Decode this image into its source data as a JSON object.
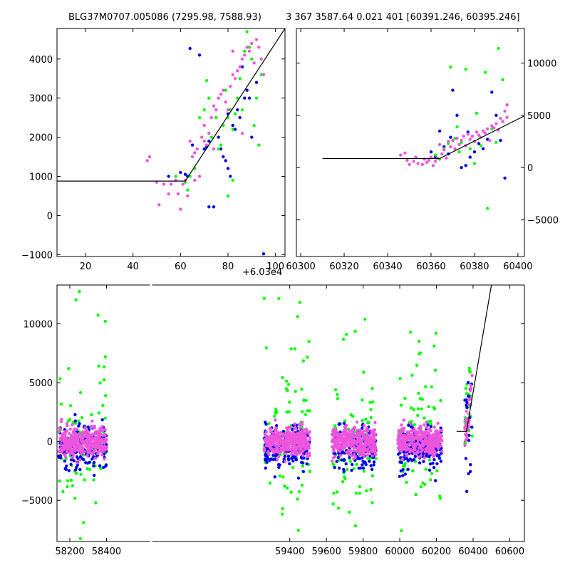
{
  "chart_data": [
    {
      "type": "scatter",
      "panel": "top-left",
      "title": "BLG37M0707.005086 (7295.98, 7588.93)",
      "x_offset_label": "+6.03e4",
      "xlim": [
        8,
        104
      ],
      "ylim": [
        -1050,
        4780
      ],
      "xticks": [
        20,
        40,
        60,
        80,
        100
      ],
      "yticks": [
        -1000,
        0,
        1000,
        2000,
        3000,
        4000
      ],
      "ytick_side": "left",
      "model_line": [
        [
          8,
          880
        ],
        [
          62,
          880
        ],
        [
          104,
          4780
        ]
      ],
      "series": [
        {
          "color": "#0000ee",
          "points": [
            [
              55,
              1000
            ],
            [
              60,
              1100
            ],
            [
              62,
              1050
            ],
            [
              63,
              1000
            ],
            [
              64,
              4270
            ],
            [
              65,
              1800
            ],
            [
              68,
              4100
            ],
            [
              70,
              1700
            ],
            [
              71,
              1750
            ],
            [
              72,
              1900
            ],
            [
              72,
              220
            ],
            [
              74,
              220
            ],
            [
              76,
              2000
            ],
            [
              77,
              1700
            ],
            [
              78,
              1500
            ],
            [
              79,
              1400
            ],
            [
              80,
              2600
            ],
            [
              80,
              1200
            ],
            [
              81,
              1000
            ],
            [
              82,
              2300
            ],
            [
              83,
              2200
            ],
            [
              84,
              2700
            ],
            [
              85,
              2500
            ],
            [
              86,
              3800
            ],
            [
              87,
              3000
            ],
            [
              88,
              3200
            ],
            [
              89,
              3000
            ],
            [
              90,
              2000
            ],
            [
              92,
              3400
            ],
            [
              95,
              -980
            ]
          ]
        },
        {
          "color": "#00ff00",
          "points": [
            [
              58,
              1000
            ],
            [
              62,
              850
            ],
            [
              64,
              1000
            ],
            [
              66,
              1200
            ],
            [
              68,
              2500
            ],
            [
              70,
              2700
            ],
            [
              71,
              3450
            ],
            [
              72,
              3000
            ],
            [
              73,
              2000
            ],
            [
              75,
              2500
            ],
            [
              76,
              1700
            ],
            [
              77,
              1800
            ],
            [
              78,
              2300
            ],
            [
              79,
              3200
            ],
            [
              80,
              2500
            ],
            [
              81,
              2700
            ],
            [
              82,
              2200
            ],
            [
              83,
              2600
            ],
            [
              84,
              3000
            ],
            [
              85,
              3500
            ],
            [
              86,
              2700
            ],
            [
              87,
              4200
            ],
            [
              88,
              4700
            ],
            [
              89,
              4300
            ],
            [
              90,
              4000
            ],
            [
              91,
              2300
            ],
            [
              92,
              3000
            ],
            [
              93,
              1800
            ],
            [
              94,
              3600
            ],
            [
              80,
              500
            ],
            [
              82,
              900
            ],
            [
              63,
              650
            ]
          ]
        },
        {
          "color": "#ee55dd",
          "points": [
            [
              46,
              1400
            ],
            [
              47,
              1500
            ],
            [
              50,
              850
            ],
            [
              51,
              270
            ],
            [
              53,
              800
            ],
            [
              55,
              550
            ],
            [
              56,
              800
            ],
            [
              58,
              900
            ],
            [
              59,
              550
            ],
            [
              60,
              160
            ],
            [
              61,
              800
            ],
            [
              62,
              900
            ],
            [
              63,
              500
            ],
            [
              64,
              1900
            ],
            [
              65,
              1500
            ],
            [
              66,
              1600
            ],
            [
              67,
              1700
            ],
            [
              68,
              1000
            ],
            [
              69,
              2000
            ],
            [
              70,
              2300
            ],
            [
              71,
              1800
            ],
            [
              72,
              2100
            ],
            [
              73,
              2500
            ],
            [
              74,
              2800
            ],
            [
              75,
              2700
            ],
            [
              76,
              3000
            ],
            [
              77,
              3100
            ],
            [
              78,
              3200
            ],
            [
              79,
              2900
            ],
            [
              80,
              2700
            ],
            [
              81,
              3300
            ],
            [
              82,
              3600
            ],
            [
              83,
              3500
            ],
            [
              84,
              3700
            ],
            [
              85,
              3800
            ],
            [
              86,
              4000
            ],
            [
              87,
              4100
            ],
            [
              88,
              4300
            ],
            [
              89,
              4200
            ],
            [
              90,
              4400
            ],
            [
              91,
              3900
            ],
            [
              92,
              4500
            ],
            [
              93,
              4300
            ],
            [
              94,
              4000
            ],
            [
              95,
              3600
            ],
            [
              66,
              900
            ],
            [
              70,
              1900
            ],
            [
              74,
              1700
            ],
            [
              82,
              4200
            ],
            [
              86,
              2100
            ]
          ]
        }
      ]
    },
    {
      "type": "scatter",
      "panel": "top-right",
      "title": "3 367 3587.64 0.021 401 [60391.246, 60395.246]",
      "xlim": [
        60298,
        60403
      ],
      "ylim": [
        -8500,
        13300
      ],
      "xticks": [
        60300,
        60320,
        60340,
        60360,
        60380,
        60400
      ],
      "yticks": [
        -5000,
        0,
        5000,
        10000
      ],
      "ytick_side": "right",
      "model_line": [
        [
          60310,
          870
        ],
        [
          60364,
          870
        ],
        [
          60403,
          4950
        ]
      ],
      "series": [
        {
          "color": "#0000ee",
          "points": [
            [
              60360,
              1500
            ],
            [
              60362,
              1000
            ],
            [
              60364,
              3500
            ],
            [
              60366,
              2000
            ],
            [
              60368,
              1300
            ],
            [
              60370,
              7400
            ],
            [
              60372,
              5000
            ],
            [
              60374,
              0
            ],
            [
              60376,
              200
            ],
            [
              60378,
              1000
            ],
            [
              60380,
              1500
            ],
            [
              60382,
              2300
            ],
            [
              60384,
              1800
            ],
            [
              60386,
              2700
            ],
            [
              60388,
              7200
            ],
            [
              60390,
              5000
            ],
            [
              60392,
              2600
            ],
            [
              60394,
              -1000
            ],
            [
              60369,
              2900
            ],
            [
              60377,
              3400
            ]
          ]
        },
        {
          "color": "#00ff00",
          "points": [
            [
              60362,
              1200
            ],
            [
              60364,
              800
            ],
            [
              60366,
              1800
            ],
            [
              60368,
              2300
            ],
            [
              60369,
              9600
            ],
            [
              60371,
              2800
            ],
            [
              60372,
              3900
            ],
            [
              60374,
              2400
            ],
            [
              60376,
              9400
            ],
            [
              60378,
              1800
            ],
            [
              60379,
              3000
            ],
            [
              60381,
              5200
            ],
            [
              60383,
              2100
            ],
            [
              60385,
              9100
            ],
            [
              60386,
              -3900
            ],
            [
              60388,
              3700
            ],
            [
              60390,
              2400
            ],
            [
              60391,
              11400
            ],
            [
              60393,
              8400
            ],
            [
              60395,
              6000
            ],
            [
              60380,
              400
            ],
            [
              60373,
              1500
            ]
          ]
        },
        {
          "color": "#ee55dd",
          "points": [
            [
              60346,
              1200
            ],
            [
              60348,
              1400
            ],
            [
              60350,
              300
            ],
            [
              60352,
              600
            ],
            [
              60353,
              1000
            ],
            [
              60354,
              400
            ],
            [
              60356,
              300
            ],
            [
              60357,
              800
            ],
            [
              60358,
              500
            ],
            [
              60359,
              700
            ],
            [
              60360,
              1000
            ],
            [
              60361,
              200
            ],
            [
              60362,
              600
            ],
            [
              60363,
              900
            ],
            [
              60364,
              2200
            ],
            [
              60365,
              1300
            ],
            [
              60366,
              1700
            ],
            [
              60367,
              900
            ],
            [
              60368,
              2500
            ],
            [
              60369,
              2000
            ],
            [
              60370,
              2600
            ],
            [
              60371,
              1800
            ],
            [
              60372,
              2800
            ],
            [
              60373,
              2200
            ],
            [
              60374,
              2600
            ],
            [
              60375,
              3000
            ],
            [
              60376,
              2100
            ],
            [
              60377,
              3200
            ],
            [
              60378,
              2700
            ],
            [
              60379,
              3000
            ],
            [
              60380,
              2500
            ],
            [
              60381,
              3400
            ],
            [
              60382,
              3100
            ],
            [
              60383,
              2900
            ],
            [
              60384,
              3500
            ],
            [
              60385,
              3300
            ],
            [
              60386,
              3700
            ],
            [
              60387,
              2600
            ],
            [
              60388,
              4000
            ],
            [
              60389,
              3800
            ],
            [
              60390,
              4200
            ],
            [
              60391,
              3600
            ],
            [
              60392,
              4700
            ],
            [
              60393,
              4400
            ],
            [
              60394,
              5400
            ],
            [
              60395,
              6000
            ],
            [
              60395,
              4800
            ],
            [
              60349,
              700
            ]
          ]
        }
      ]
    },
    {
      "type": "scatter",
      "panel": "bottom",
      "xlim": [
        58130,
        60680
      ],
      "ylim": [
        -8500,
        13300
      ],
      "xticks": [
        58200,
        58400,
        59400,
        59600,
        59800,
        60000,
        60200,
        60400,
        60600
      ],
      "yticks": [
        -5000,
        0,
        5000,
        10000
      ],
      "ytick_side": "left",
      "model_line": [
        [
          60310,
          870
        ],
        [
          60364,
          870
        ],
        [
          60500,
          13300
        ]
      ],
      "season_bands": [
        [
          58140,
          58400
        ],
        [
          59260,
          59510
        ],
        [
          59630,
          59870
        ],
        [
          59990,
          60230
        ],
        [
          60355,
          60395
        ]
      ]
    }
  ]
}
